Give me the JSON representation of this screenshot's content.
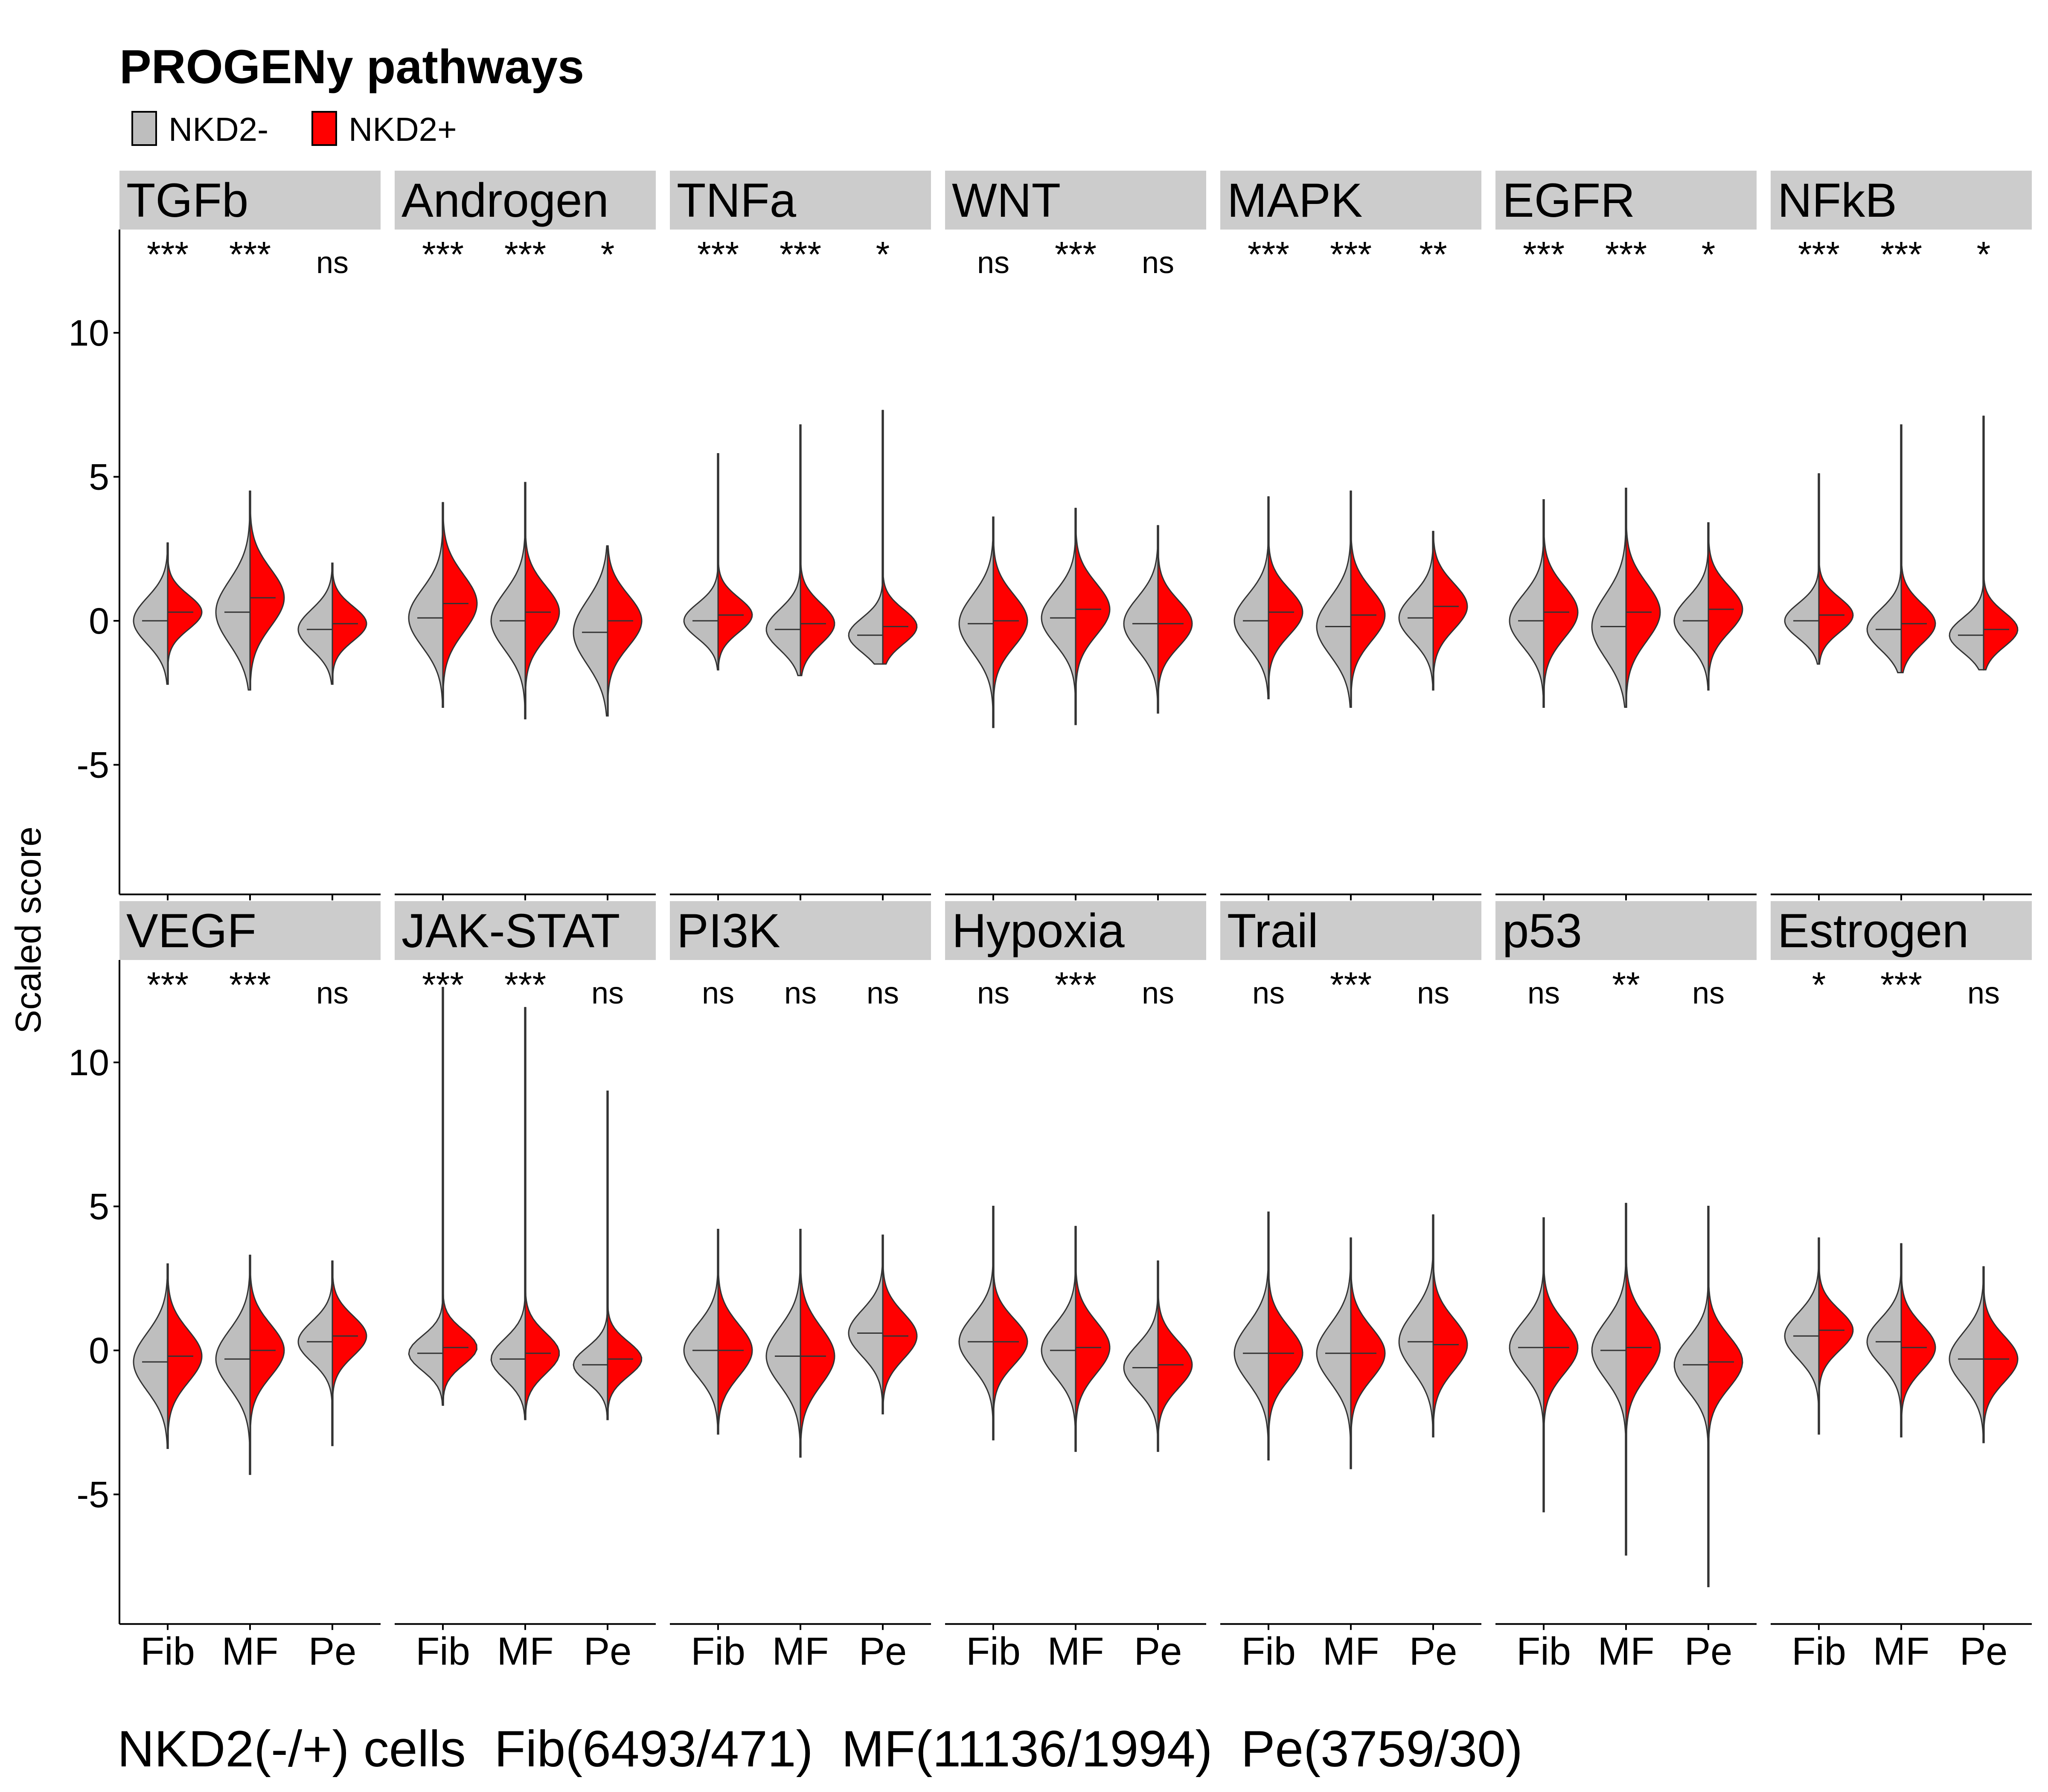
{
  "chart_data": {
    "type": "violin",
    "title": "PROGENy pathways",
    "ylabel": "Scaled score",
    "xlabel": "NKD2(-/+) cells  Fib(6493/471)  MF(11136/1994)  Pe(3759/30)",
    "ylim": [
      -9.5,
      13.8
    ],
    "y_ticks": [
      -5,
      0,
      5,
      10
    ],
    "categories": [
      "Fib",
      "MF",
      "Pe"
    ],
    "grid": false,
    "legend_position": "top-left",
    "series": [
      {
        "name": "NKD2-",
        "color": "#bebebe"
      },
      {
        "name": "NKD2+",
        "color": "#ff0000"
      }
    ],
    "panels": [
      {
        "name": "TGFb",
        "sig": [
          "***",
          "***",
          "ns"
        ],
        "groups": [
          {
            "median": [
              0.0,
              0.3
            ],
            "min": -2.2,
            "max": 2.7,
            "spread": [
              0.8,
              0.6
            ]
          },
          {
            "median": [
              0.3,
              0.8
            ],
            "min": -2.4,
            "max": 4.5,
            "spread": [
              1.1,
              1.0
            ]
          },
          {
            "median": [
              -0.3,
              -0.1
            ],
            "min": -2.2,
            "max": 2.0,
            "spread": [
              0.7,
              0.6
            ]
          }
        ]
      },
      {
        "name": "Androgen",
        "sig": [
          "***",
          "***",
          "*"
        ],
        "groups": [
          {
            "median": [
              0.1,
              0.6
            ],
            "min": -3.0,
            "max": 4.1,
            "spread": [
              1.0,
              1.0
            ]
          },
          {
            "median": [
              0.0,
              0.3
            ],
            "min": -3.4,
            "max": 4.8,
            "spread": [
              1.0,
              0.9
            ]
          },
          {
            "median": [
              -0.4,
              0.0
            ],
            "min": -3.3,
            "max": 2.6,
            "spread": [
              1.1,
              0.9
            ]
          }
        ]
      },
      {
        "name": "TNFa",
        "sig": [
          "***",
          "***",
          "*"
        ],
        "groups": [
          {
            "median": [
              0.0,
              0.2
            ],
            "min": -1.7,
            "max": 5.8,
            "spread": [
              0.6,
              0.6
            ]
          },
          {
            "median": [
              -0.3,
              -0.1
            ],
            "min": -1.9,
            "max": 6.8,
            "spread": [
              0.7,
              0.7
            ]
          },
          {
            "median": [
              -0.5,
              -0.2
            ],
            "min": -1.5,
            "max": 7.3,
            "spread": [
              0.6,
              0.6
            ]
          }
        ]
      },
      {
        "name": "WNT",
        "sig": [
          "ns",
          "***",
          "ns"
        ],
        "groups": [
          {
            "median": [
              -0.1,
              0.0
            ],
            "min": -3.7,
            "max": 3.6,
            "spread": [
              1.0,
              0.9
            ]
          },
          {
            "median": [
              0.1,
              0.4
            ],
            "min": -3.6,
            "max": 3.9,
            "spread": [
              0.9,
              0.9
            ]
          },
          {
            "median": [
              -0.1,
              -0.1
            ],
            "min": -3.2,
            "max": 3.3,
            "spread": [
              0.9,
              0.8
            ]
          }
        ]
      },
      {
        "name": "MAPK",
        "sig": [
          "***",
          "***",
          "**"
        ],
        "groups": [
          {
            "median": [
              0.0,
              0.3
            ],
            "min": -2.7,
            "max": 4.3,
            "spread": [
              0.9,
              0.8
            ]
          },
          {
            "median": [
              -0.2,
              0.2
            ],
            "min": -3.0,
            "max": 4.5,
            "spread": [
              1.0,
              0.9
            ]
          },
          {
            "median": [
              0.1,
              0.5
            ],
            "min": -2.4,
            "max": 3.1,
            "spread": [
              0.8,
              0.8
            ]
          }
        ]
      },
      {
        "name": "EGFR",
        "sig": [
          "***",
          "***",
          "*"
        ],
        "groups": [
          {
            "median": [
              0.0,
              0.3
            ],
            "min": -3.0,
            "max": 4.2,
            "spread": [
              0.9,
              0.9
            ]
          },
          {
            "median": [
              -0.2,
              0.3
            ],
            "min": -3.0,
            "max": 4.6,
            "spread": [
              1.1,
              1.0
            ]
          },
          {
            "median": [
              0.0,
              0.4
            ],
            "min": -2.4,
            "max": 3.4,
            "spread": [
              0.8,
              0.8
            ]
          }
        ]
      },
      {
        "name": "NFkB",
        "sig": [
          "***",
          "***",
          "*"
        ],
        "groups": [
          {
            "median": [
              0.0,
              0.2
            ],
            "min": -1.5,
            "max": 5.1,
            "spread": [
              0.6,
              0.6
            ]
          },
          {
            "median": [
              -0.3,
              -0.1
            ],
            "min": -1.8,
            "max": 6.8,
            "spread": [
              0.7,
              0.7
            ]
          },
          {
            "median": [
              -0.5,
              -0.3
            ],
            "min": -1.7,
            "max": 7.1,
            "spread": [
              0.6,
              0.6
            ]
          }
        ]
      },
      {
        "name": "VEGF",
        "sig": [
          "***",
          "***",
          "ns"
        ],
        "groups": [
          {
            "median": [
              -0.4,
              -0.2
            ],
            "min": -3.4,
            "max": 3.0,
            "spread": [
              1.0,
              0.9
            ]
          },
          {
            "median": [
              -0.3,
              0.0
            ],
            "min": -4.3,
            "max": 3.3,
            "spread": [
              1.0,
              0.9
            ]
          },
          {
            "median": [
              0.3,
              0.5
            ],
            "min": -3.3,
            "max": 3.1,
            "spread": [
              0.7,
              0.7
            ]
          }
        ]
      },
      {
        "name": "JAK-STAT",
        "sig": [
          "***",
          "***",
          "ns"
        ],
        "groups": [
          {
            "median": [
              -0.1,
              0.1
            ],
            "min": -1.9,
            "max": 12.6,
            "spread": [
              0.6,
              0.6
            ]
          },
          {
            "median": [
              -0.3,
              -0.1
            ],
            "min": -2.4,
            "max": 11.9,
            "spread": [
              0.7,
              0.7
            ]
          },
          {
            "median": [
              -0.5,
              -0.3
            ],
            "min": -2.4,
            "max": 9.0,
            "spread": [
              0.6,
              0.6
            ]
          }
        ]
      },
      {
        "name": "PI3K",
        "sig": [
          "ns",
          "ns",
          "ns"
        ],
        "groups": [
          {
            "median": [
              0.0,
              0.0
            ],
            "min": -2.9,
            "max": 4.2,
            "spread": [
              0.9,
              0.9
            ]
          },
          {
            "median": [
              -0.2,
              -0.2
            ],
            "min": -3.7,
            "max": 4.2,
            "spread": [
              1.0,
              1.0
            ]
          },
          {
            "median": [
              0.6,
              0.5
            ],
            "min": -2.2,
            "max": 4.0,
            "spread": [
              0.8,
              0.8
            ]
          }
        ]
      },
      {
        "name": "Hypoxia",
        "sig": [
          "ns",
          "***",
          "ns"
        ],
        "groups": [
          {
            "median": [
              0.3,
              0.3
            ],
            "min": -3.1,
            "max": 5.0,
            "spread": [
              0.9,
              0.8
            ]
          },
          {
            "median": [
              0.0,
              0.1
            ],
            "min": -3.5,
            "max": 4.3,
            "spread": [
              0.9,
              0.9
            ]
          },
          {
            "median": [
              -0.6,
              -0.5
            ],
            "min": -3.5,
            "max": 3.1,
            "spread": [
              0.8,
              0.8
            ]
          }
        ]
      },
      {
        "name": "Trail",
        "sig": [
          "ns",
          "***",
          "ns"
        ],
        "groups": [
          {
            "median": [
              -0.1,
              -0.1
            ],
            "min": -3.8,
            "max": 4.8,
            "spread": [
              1.0,
              0.9
            ]
          },
          {
            "median": [
              -0.1,
              -0.1
            ],
            "min": -4.1,
            "max": 3.9,
            "spread": [
              1.0,
              0.9
            ]
          },
          {
            "median": [
              0.3,
              0.2
            ],
            "min": -3.0,
            "max": 4.7,
            "spread": [
              1.0,
              0.9
            ]
          }
        ]
      },
      {
        "name": "p53",
        "sig": [
          "ns",
          "**",
          "ns"
        ],
        "groups": [
          {
            "median": [
              0.1,
              0.1
            ],
            "min": -5.6,
            "max": 4.6,
            "spread": [
              0.9,
              0.9
            ]
          },
          {
            "median": [
              0.0,
              0.1
            ],
            "min": -7.1,
            "max": 5.1,
            "spread": [
              1.0,
              1.0
            ]
          },
          {
            "median": [
              -0.5,
              -0.4
            ],
            "min": -8.2,
            "max": 5.0,
            "spread": [
              0.9,
              0.9
            ]
          }
        ]
      },
      {
        "name": "Estrogen",
        "sig": [
          "*",
          "***",
          "ns"
        ],
        "groups": [
          {
            "median": [
              0.5,
              0.7
            ],
            "min": -2.9,
            "max": 3.9,
            "spread": [
              0.8,
              0.7
            ]
          },
          {
            "median": [
              0.3,
              0.1
            ],
            "min": -3.0,
            "max": 3.7,
            "spread": [
              0.8,
              0.8
            ]
          },
          {
            "median": [
              -0.3,
              -0.3
            ],
            "min": -3.2,
            "max": 2.9,
            "spread": [
              0.9,
              0.8
            ]
          }
        ]
      }
    ]
  }
}
